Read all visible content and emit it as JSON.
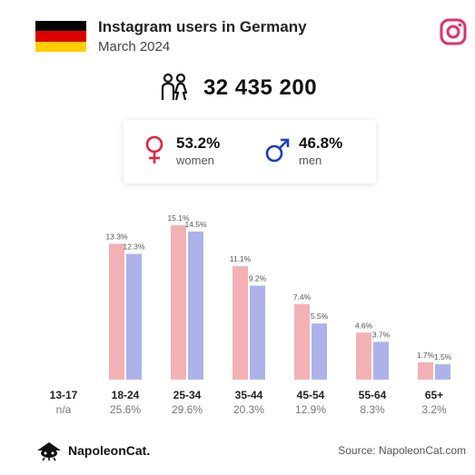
{
  "header": {
    "title": "Instagram users in Germany",
    "subtitle": "March 2024",
    "flag_colors": [
      "#000000",
      "#dd0000",
      "#ffce00"
    ],
    "brand_icon": "instagram-icon",
    "brand_color": "#e1306c"
  },
  "total": {
    "value": "32 435 200",
    "icon": "users-icon"
  },
  "gender": {
    "women": {
      "value": "53.2%",
      "label": "women",
      "icon": "female-symbol-icon",
      "color": "#e0263f"
    },
    "men": {
      "value": "46.8%",
      "label": "men",
      "icon": "male-symbol-icon",
      "color": "#1f3fbf"
    }
  },
  "chart_data": {
    "type": "bar",
    "categories": [
      "13-17",
      "18-24",
      "25-34",
      "35-44",
      "45-54",
      "55-64",
      "65+"
    ],
    "category_shares": [
      "n/a",
      "25.6%",
      "29.6%",
      "20.3%",
      "12.9%",
      "8.3%",
      "3.2%"
    ],
    "series": [
      {
        "values": [
          null,
          13.3,
          15.1,
          11.1,
          7.4,
          4.6,
          1.7
        ],
        "labels": [
          "",
          "13.3%",
          "15.1%",
          "11.1%",
          "7.4%",
          "4.6%",
          "1.7%"
        ],
        "color": "#f3b1b5"
      },
      {
        "values": [
          null,
          12.3,
          14.5,
          9.2,
          5.5,
          3.7,
          1.5
        ],
        "labels": [
          "",
          "12.3%",
          "14.5%",
          "9.2%",
          "5.5%",
          "3.7%",
          "1.5%"
        ],
        "color": "#adb3ea"
      }
    ],
    "ylim": [
      0,
      16
    ],
    "grid": false,
    "legend": "none"
  },
  "footer": {
    "brand": "NapoleonCat.",
    "source": "Source: NapoleonCat.com"
  }
}
